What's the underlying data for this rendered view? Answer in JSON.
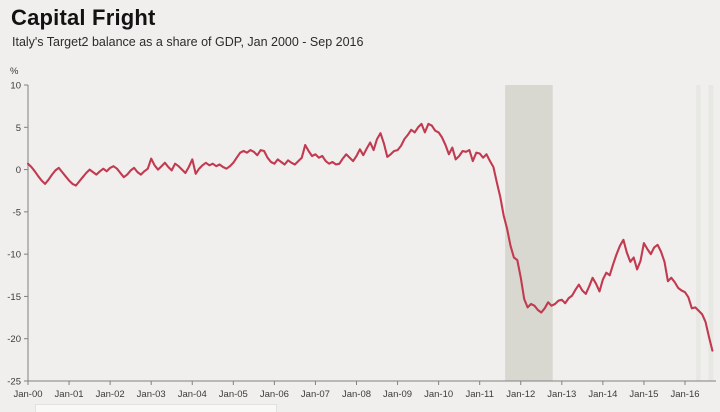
{
  "header": {
    "title": "Capital Fright",
    "subtitle": "Italy's Target2 balance as a share of GDP, Jan 2000 - Sep 2016"
  },
  "chart_data": {
    "type": "line",
    "title": "Capital Fright",
    "subtitle": "Italy's Target2 balance as a share of GDP, Jan 2000 - Sep 2016",
    "unit_label": "%",
    "grid": false,
    "legend": "none",
    "ylim": [
      -25,
      10
    ],
    "y_ticks": [
      10,
      5,
      0,
      -5,
      -10,
      -15,
      -20,
      -25
    ],
    "x_tick_labels": [
      "Jan-00",
      "Jan-01",
      "Jan-02",
      "Jan-03",
      "Jan-04",
      "Jan-05",
      "Jan-06",
      "Jan-07",
      "Jan-08",
      "Jan-09",
      "Jan-10",
      "Jan-11",
      "Jan-12",
      "Jan-13",
      "Jan-14",
      "Jan-15",
      "Jan-16"
    ],
    "x_range_years": [
      2000,
      2016.75
    ],
    "colors": {
      "line": "#c23a50",
      "axis": "#808080",
      "tick_text": "#3b3b3b",
      "background": "#f0efed"
    },
    "highlight_bands": [
      {
        "name": "recession-shaded-band",
        "from": 2011.62,
        "to": 2012.78,
        "color": "#d9d8d0"
      },
      {
        "name": "event-band-1",
        "from": 2016.27,
        "to": 2016.38,
        "color": "#e7e7e3"
      },
      {
        "name": "event-band-2",
        "from": 2016.57,
        "to": 2016.69,
        "color": "#e7e7e3"
      }
    ],
    "series": [
      {
        "name": "Italy Target2 balance (% of GDP)",
        "start_year": 2000,
        "interval_months": 1,
        "end_label": "Sep 2016",
        "values": [
          0.7,
          0.3,
          -0.2,
          -0.8,
          -1.3,
          -1.7,
          -1.2,
          -0.6,
          -0.1,
          0.2,
          -0.3,
          -0.8,
          -1.3,
          -1.7,
          -1.9,
          -1.4,
          -0.9,
          -0.4,
          0.0,
          -0.3,
          -0.6,
          -0.2,
          0.1,
          -0.2,
          0.2,
          0.4,
          0.1,
          -0.4,
          -0.9,
          -0.6,
          -0.1,
          0.2,
          -0.3,
          -0.6,
          -0.2,
          0.1,
          1.3,
          0.5,
          0.0,
          0.4,
          0.8,
          0.3,
          -0.1,
          0.7,
          0.4,
          0.0,
          -0.4,
          0.3,
          1.2,
          -0.5,
          0.1,
          0.5,
          0.8,
          0.5,
          0.7,
          0.4,
          0.6,
          0.3,
          0.1,
          0.4,
          0.8,
          1.4,
          2.0,
          2.2,
          2.0,
          2.3,
          2.1,
          1.7,
          2.3,
          2.2,
          1.4,
          0.9,
          0.7,
          1.2,
          0.9,
          0.6,
          1.1,
          0.8,
          0.6,
          1.0,
          1.4,
          2.9,
          2.2,
          1.6,
          1.8,
          1.4,
          1.6,
          1.0,
          0.7,
          0.9,
          0.6,
          0.7,
          1.3,
          1.8,
          1.4,
          1.0,
          1.6,
          2.4,
          1.7,
          2.5,
          3.2,
          2.3,
          3.6,
          4.3,
          3.1,
          1.5,
          1.8,
          2.2,
          2.3,
          2.8,
          3.6,
          4.1,
          4.7,
          4.4,
          5.0,
          5.4,
          4.4,
          5.4,
          5.2,
          4.6,
          4.4,
          3.8,
          2.9,
          1.8,
          2.6,
          1.2,
          1.6,
          2.2,
          2.1,
          2.3,
          1.0,
          2.0,
          1.9,
          1.4,
          1.8,
          1.0,
          0.3,
          -1.5,
          -3.2,
          -5.4,
          -7.0,
          -9.0,
          -10.4,
          -10.7,
          -12.8,
          -15.3,
          -16.3,
          -15.9,
          -16.1,
          -16.6,
          -16.9,
          -16.4,
          -15.7,
          -16.1,
          -15.9,
          -15.5,
          -15.4,
          -15.8,
          -15.2,
          -14.9,
          -14.2,
          -13.6,
          -14.3,
          -14.7,
          -13.8,
          -12.8,
          -13.5,
          -14.4,
          -13.0,
          -12.2,
          -12.5,
          -11.2,
          -10.0,
          -9.0,
          -8.3,
          -9.8,
          -10.9,
          -10.4,
          -11.8,
          -10.8,
          -8.7,
          -9.4,
          -10.0,
          -9.2,
          -8.9,
          -9.7,
          -10.9,
          -13.2,
          -12.8,
          -13.3,
          -14.0,
          -14.3,
          -14.5,
          -15.1,
          -16.4,
          -16.3,
          -16.7,
          -17.1,
          -18.0,
          -19.8,
          -21.4
        ]
      }
    ]
  }
}
